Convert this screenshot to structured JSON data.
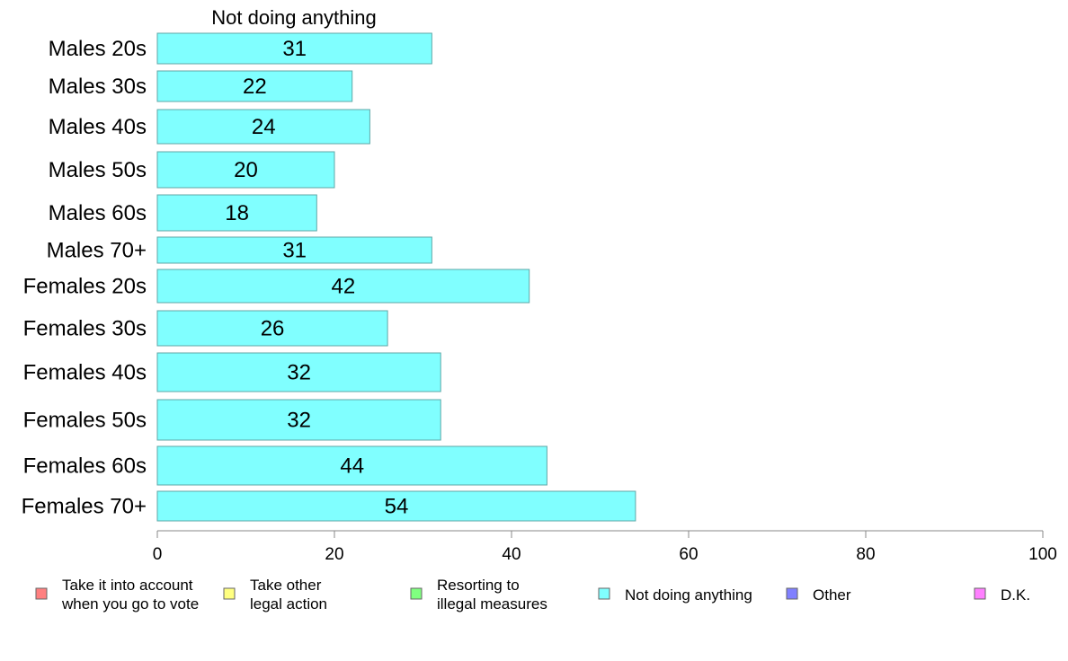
{
  "chart_data": {
    "type": "bar",
    "orientation": "horizontal",
    "title": "Not doing anything",
    "categories": [
      "Males 20s",
      "Males 30s",
      "Males 40s",
      "Males 50s",
      "Males 60s",
      "Males 70+",
      "Females 20s",
      "Females 30s",
      "Females 40s",
      "Females 50s",
      "Females 60s",
      "Females 70+"
    ],
    "series": [
      {
        "name": "Not doing anything",
        "color": "#80FFFF",
        "values": [
          31,
          22,
          24,
          20,
          18,
          31,
          42,
          26,
          32,
          32,
          44,
          54
        ]
      }
    ],
    "xlim": [
      0,
      100
    ],
    "xticks": [
      0,
      20,
      40,
      60,
      80,
      100
    ],
    "grid": false,
    "legend_placement": "bottom",
    "legend": [
      {
        "label_lines": [
          "Take it into account",
          "when you go to vote"
        ],
        "color": "#FF8080"
      },
      {
        "label_lines": [
          "Take other",
          "legal action"
        ],
        "color": "#FFFF80"
      },
      {
        "label_lines": [
          "Resorting to",
          "illegal measures"
        ],
        "color": "#80FF80"
      },
      {
        "label_lines": [
          "Not doing anything"
        ],
        "color": "#80FFFF"
      },
      {
        "label_lines": [
          "Other"
        ],
        "color": "#8080FF"
      },
      {
        "label_lines": [
          "D.K."
        ],
        "color": "#FF80FF"
      }
    ]
  }
}
